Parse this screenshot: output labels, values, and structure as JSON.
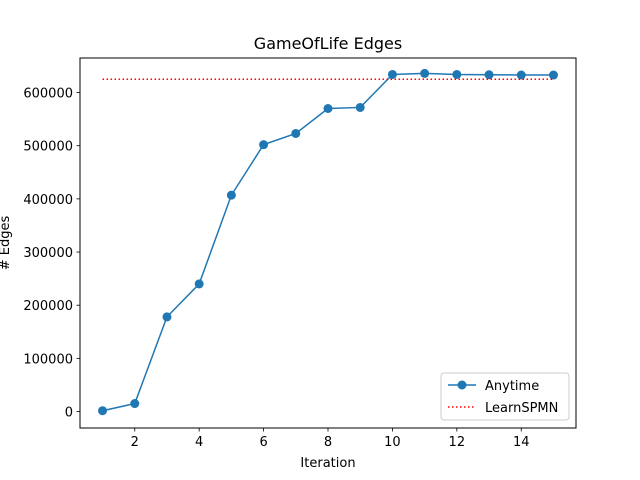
{
  "chart_data": {
    "type": "line",
    "title": "GameOfLife Edges",
    "xlabel": "Iteration",
    "ylabel": "# Edges",
    "xlim": [
      0.3,
      15.7
    ],
    "ylim": [
      -31000,
      665000
    ],
    "xticks": [
      2,
      4,
      6,
      8,
      10,
      12,
      14
    ],
    "yticks": [
      0,
      100000,
      200000,
      300000,
      400000,
      500000,
      600000
    ],
    "grid": false,
    "legend_position": "lower right",
    "series": [
      {
        "name": "Anytime",
        "style": "solid-with-circle-markers",
        "color": "#1f77b4",
        "x": [
          1,
          2,
          3,
          4,
          5,
          6,
          7,
          8,
          9,
          10,
          11,
          12,
          13,
          14,
          15
        ],
        "values": [
          1500,
          15000,
          178000,
          240000,
          407000,
          502000,
          523000,
          570000,
          572000,
          634000,
          636000,
          634000,
          633500,
          633000,
          633000
        ]
      },
      {
        "name": "LearnSPMN",
        "style": "dotted",
        "color": "#ff0000",
        "x": [
          1,
          15
        ],
        "values": [
          625000,
          625000
        ]
      }
    ]
  }
}
